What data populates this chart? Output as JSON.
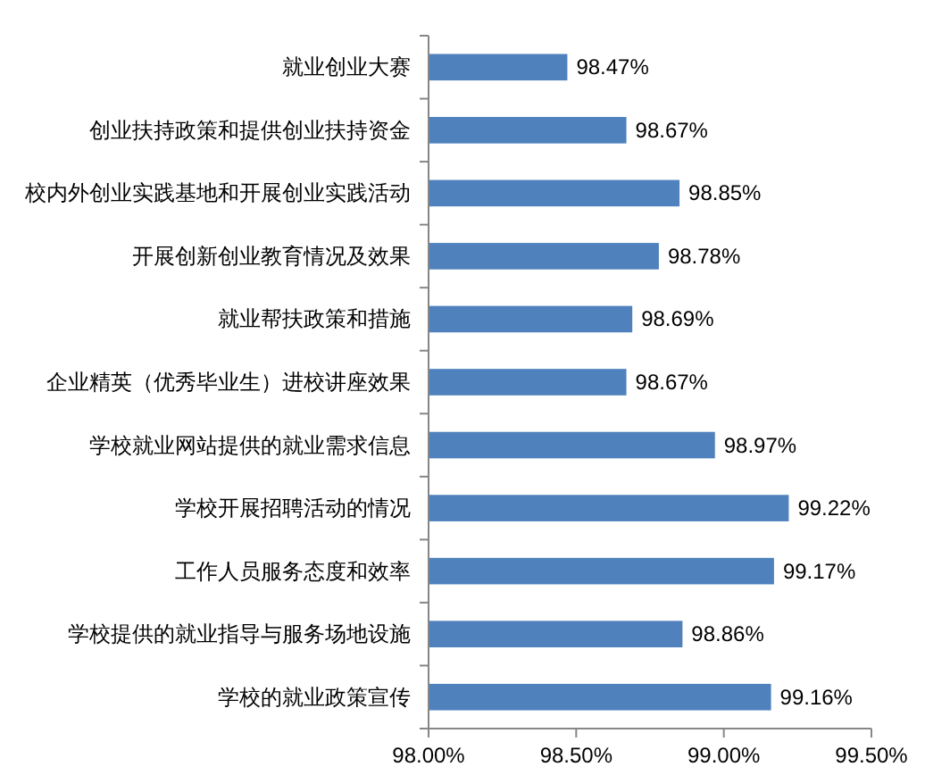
{
  "chart_data": {
    "type": "bar",
    "orientation": "horizontal",
    "grid": false,
    "categories": [
      "就业创业大赛",
      "创业扶持政策和提供创业扶持资金",
      "校内外创业实践基地和开展创业实践活动",
      "开展创新创业教育情况及效果",
      "就业帮扶政策和措施",
      "企业精英（优秀毕业生）进校讲座效果",
      "学校就业网站提供的就业需求信息",
      "学校开展招聘活动的情况",
      "工作人员服务态度和效率",
      "学校提供的就业指导与服务场地设施",
      "学校的就业政策宣传"
    ],
    "values": [
      98.47,
      98.67,
      98.85,
      98.78,
      98.69,
      98.67,
      98.97,
      99.22,
      99.17,
      98.86,
      99.16
    ],
    "value_labels": [
      "98.47%",
      "98.67%",
      "98.85%",
      "98.78%",
      "98.69%",
      "98.67%",
      "98.97%",
      "99.22%",
      "99.17%",
      "98.86%",
      "99.16%"
    ],
    "color": "#4f81bd",
    "xlim": [
      98,
      99.5
    ],
    "xticks": [
      {
        "value": 98,
        "label": "98.00%"
      },
      {
        "value": 98.5,
        "label": "98.50%"
      },
      {
        "value": 99,
        "label": "99.00%"
      },
      {
        "value": 99.5,
        "label": "99.50%"
      }
    ]
  }
}
